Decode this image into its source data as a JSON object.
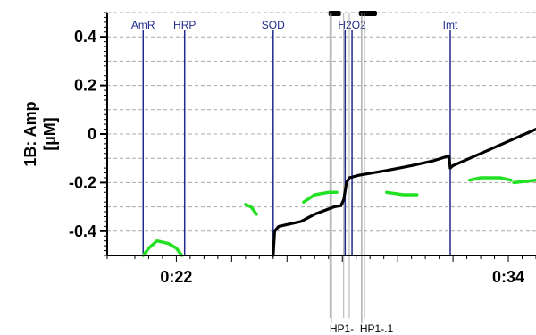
{
  "chart_data": {
    "type": "line",
    "ylabel_line1": "1B: Amp",
    "ylabel_line2": "[µM]",
    "ylim": [
      -0.5,
      0.5
    ],
    "xlim_minutes": [
      19.5,
      35
    ],
    "grid": "horizontal dashed",
    "y_ticks": [
      {
        "value": 0.4,
        "label": "0.4"
      },
      {
        "value": 0.2,
        "label": "0.2"
      },
      {
        "value": 0,
        "label": "0"
      },
      {
        "value": -0.2,
        "label": "-0.2"
      },
      {
        "value": -0.4,
        "label": "-0.4"
      }
    ],
    "x_tick_labels": [
      {
        "minutes": 22,
        "label": "0:22"
      },
      {
        "minutes": 34,
        "label": "0:34"
      }
    ],
    "events": [
      {
        "label": "AmR",
        "minutes": 20.8
      },
      {
        "label": "HRP",
        "minutes": 22.3
      },
      {
        "label": "SOD",
        "minutes": 25.5
      },
      {
        "label": "H2O2",
        "minutes": 28.35
      },
      {
        "label": "",
        "minutes": 28.1
      },
      {
        "label": "Imt",
        "minutes": 31.9
      }
    ],
    "bottom_markers": [
      {
        "label": "HP1-",
        "minutes": 27.6
      },
      {
        "label": "HP1-.1",
        "minutes": 28.7
      }
    ],
    "top_bars": [
      {
        "start": 27.5,
        "end": 27.95
      },
      {
        "start": 28.6,
        "end": 29.25
      }
    ],
    "series": [
      {
        "color": "#000000",
        "segments": [
          [
            [
              25.5,
              -0.5
            ],
            [
              25.55,
              -0.4
            ],
            [
              25.7,
              -0.38
            ],
            [
              26.5,
              -0.36
            ],
            [
              27.0,
              -0.33
            ],
            [
              27.7,
              -0.3
            ],
            [
              27.95,
              -0.295
            ],
            [
              28.05,
              -0.27
            ],
            [
              28.15,
              -0.2
            ],
            [
              28.25,
              -0.18
            ],
            [
              28.6,
              -0.17
            ],
            [
              29.6,
              -0.15
            ],
            [
              30.5,
              -0.13
            ],
            [
              31.3,
              -0.11
            ],
            [
              31.85,
              -0.09
            ],
            [
              31.9,
              -0.14
            ],
            [
              32.0,
              -0.13
            ],
            [
              33.0,
              -0.08
            ],
            [
              34.0,
              -0.03
            ],
            [
              35.0,
              0.02
            ]
          ]
        ]
      },
      {
        "color": "#22e022",
        "segments": [
          [
            [
              20.8,
              -0.5
            ],
            [
              21.0,
              -0.47
            ],
            [
              21.3,
              -0.44
            ],
            [
              21.7,
              -0.45
            ],
            [
              22.0,
              -0.47
            ],
            [
              22.2,
              -0.5
            ]
          ],
          [
            [
              24.5,
              -0.29
            ],
            [
              24.7,
              -0.3
            ],
            [
              24.9,
              -0.33
            ]
          ],
          [
            [
              26.6,
              -0.28
            ],
            [
              27.0,
              -0.25
            ],
            [
              27.5,
              -0.24
            ],
            [
              27.8,
              -0.24
            ]
          ],
          [
            [
              29.6,
              -0.24
            ],
            [
              30.2,
              -0.25
            ],
            [
              30.7,
              -0.25
            ]
          ],
          [
            [
              32.6,
              -0.19
            ],
            [
              33.0,
              -0.18
            ],
            [
              33.7,
              -0.18
            ],
            [
              34.1,
              -0.19
            ]
          ],
          [
            [
              34.2,
              -0.2
            ],
            [
              35.0,
              -0.19
            ]
          ]
        ]
      }
    ]
  }
}
